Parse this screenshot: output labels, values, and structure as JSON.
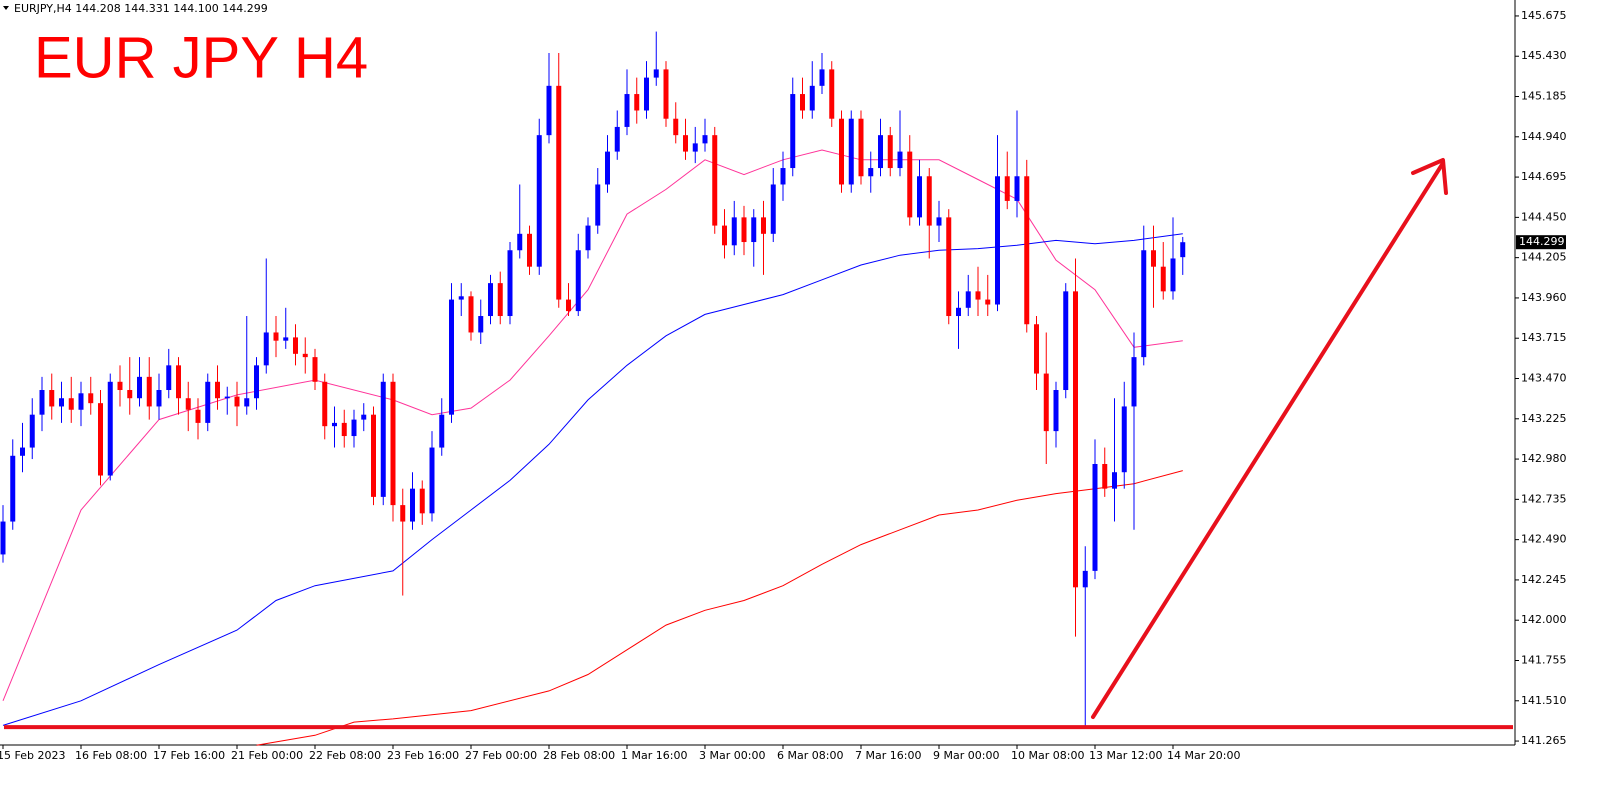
{
  "header": "EURJPY,H4  144.208 144.331 144.100 144.299",
  "chart_data": {
    "type": "candlestick",
    "title": "EUR JPY H4",
    "up_color": "#0000ff",
    "down_color": "#ff0000",
    "grid": false,
    "ylim": [
      141.241,
      145.772
    ],
    "yticks": [
      {
        "value": 145.675,
        "label": "145.675"
      },
      {
        "value": 145.43,
        "label": "145.430"
      },
      {
        "value": 145.185,
        "label": "145.185"
      },
      {
        "value": 144.94,
        "label": "144.940"
      },
      {
        "value": 144.695,
        "label": "144.695"
      },
      {
        "value": 144.45,
        "label": "144.450"
      },
      {
        "value": 144.205,
        "label": "144.205"
      },
      {
        "value": 143.96,
        "label": "143.960"
      },
      {
        "value": 143.715,
        "label": "143.715"
      },
      {
        "value": 143.47,
        "label": "143.470"
      },
      {
        "value": 143.225,
        "label": "143.225"
      },
      {
        "value": 142.98,
        "label": "142.980"
      },
      {
        "value": 142.735,
        "label": "142.735"
      },
      {
        "value": 142.49,
        "label": "142.490"
      },
      {
        "value": 142.245,
        "label": "142.245"
      },
      {
        "value": 142.0,
        "label": "142.000"
      },
      {
        "value": 141.755,
        "label": "141.755"
      },
      {
        "value": 141.51,
        "label": "141.510"
      },
      {
        "value": 141.265,
        "label": "141.265"
      }
    ],
    "xticks": [
      {
        "value": 0,
        "label": "15 Feb 2023"
      },
      {
        "value": 8,
        "label": "16 Feb 08:00"
      },
      {
        "value": 16,
        "label": "17 Feb 16:00"
      },
      {
        "value": 24,
        "label": "21 Feb 00:00"
      },
      {
        "value": 32,
        "label": "22 Feb 08:00"
      },
      {
        "value": 40,
        "label": "23 Feb 16:00"
      },
      {
        "value": 48,
        "label": "27 Feb 00:00"
      },
      {
        "value": 56,
        "label": "28 Feb 08:00"
      },
      {
        "value": 64,
        "label": "1 Mar 16:00"
      },
      {
        "value": 72,
        "label": "3 Mar 00:00"
      },
      {
        "value": 80,
        "label": "6 Mar 08:00"
      },
      {
        "value": 88,
        "label": "7 Mar 16:00"
      },
      {
        "value": 96,
        "label": "9 Mar 00:00"
      },
      {
        "value": 104,
        "label": "10 Mar 08:00"
      },
      {
        "value": 112,
        "label": "13 Mar 12:00"
      },
      {
        "value": 120,
        "label": "14 Mar 20:00"
      }
    ],
    "current_price": 144.299,
    "level": 141.35,
    "level_color": "#e8101c",
    "ohlc": [
      [
        142.4,
        142.7,
        142.35,
        142.6
      ],
      [
        142.6,
        143.1,
        142.55,
        143.0
      ],
      [
        143.0,
        143.2,
        142.9,
        143.05
      ],
      [
        143.05,
        143.35,
        142.98,
        143.25
      ],
      [
        143.25,
        143.48,
        143.15,
        143.4
      ],
      [
        143.4,
        143.5,
        143.22,
        143.3
      ],
      [
        143.3,
        143.45,
        143.2,
        143.35
      ],
      [
        143.35,
        143.48,
        143.2,
        143.28
      ],
      [
        143.28,
        143.45,
        143.18,
        143.38
      ],
      [
        143.38,
        143.48,
        143.25,
        143.32
      ],
      [
        143.32,
        143.4,
        142.82,
        142.88
      ],
      [
        142.88,
        143.5,
        142.85,
        143.45
      ],
      [
        143.45,
        143.55,
        143.3,
        143.4
      ],
      [
        143.4,
        143.6,
        143.25,
        143.35
      ],
      [
        143.35,
        143.6,
        143.3,
        143.48
      ],
      [
        143.48,
        143.6,
        143.22,
        143.3
      ],
      [
        143.3,
        143.5,
        143.22,
        143.4
      ],
      [
        143.4,
        143.65,
        143.35,
        143.55
      ],
      [
        143.55,
        143.6,
        143.25,
        143.35
      ],
      [
        143.35,
        143.45,
        143.15,
        143.28
      ],
      [
        143.28,
        143.35,
        143.1,
        143.2
      ],
      [
        143.2,
        143.5,
        143.15,
        143.45
      ],
      [
        143.45,
        143.55,
        143.28,
        143.35
      ],
      [
        143.35,
        143.42,
        143.25,
        143.36
      ],
      [
        143.36,
        143.45,
        143.18,
        143.3
      ],
      [
        143.3,
        143.85,
        143.25,
        143.35
      ],
      [
        143.35,
        143.6,
        143.28,
        143.55
      ],
      [
        143.55,
        144.2,
        143.5,
        143.75
      ],
      [
        143.75,
        143.85,
        143.6,
        143.7
      ],
      [
        143.7,
        143.9,
        143.65,
        143.72
      ],
      [
        143.72,
        143.8,
        143.55,
        143.62
      ],
      [
        143.62,
        143.72,
        143.5,
        143.6
      ],
      [
        143.6,
        143.65,
        143.4,
        143.45
      ],
      [
        143.45,
        143.5,
        143.1,
        143.18
      ],
      [
        143.18,
        143.3,
        143.05,
        143.2
      ],
      [
        143.2,
        143.28,
        143.05,
        143.12
      ],
      [
        143.12,
        143.28,
        143.05,
        143.22
      ],
      [
        143.22,
        143.32,
        143.15,
        143.25
      ],
      [
        143.25,
        143.3,
        142.7,
        142.75
      ],
      [
        142.75,
        143.5,
        142.7,
        143.45
      ],
      [
        143.45,
        143.5,
        142.6,
        142.7
      ],
      [
        142.7,
        142.8,
        142.15,
        142.6
      ],
      [
        142.6,
        142.9,
        142.55,
        142.8
      ],
      [
        142.8,
        142.85,
        142.58,
        142.65
      ],
      [
        142.65,
        143.15,
        142.6,
        143.05
      ],
      [
        143.05,
        143.35,
        143.0,
        143.25
      ],
      [
        143.25,
        144.05,
        143.2,
        143.95
      ],
      [
        143.95,
        144.05,
        143.85,
        143.97
      ],
      [
        143.97,
        144.0,
        143.7,
        143.75
      ],
      [
        143.75,
        143.95,
        143.68,
        143.85
      ],
      [
        143.85,
        144.1,
        143.8,
        144.05
      ],
      [
        144.05,
        144.12,
        143.8,
        143.85
      ],
      [
        143.85,
        144.3,
        143.8,
        144.25
      ],
      [
        144.25,
        144.65,
        144.2,
        144.35
      ],
      [
        144.35,
        144.4,
        144.1,
        144.15
      ],
      [
        144.15,
        145.05,
        144.1,
        144.95
      ],
      [
        144.95,
        145.45,
        144.9,
        145.25
      ],
      [
        145.25,
        145.45,
        143.9,
        143.95
      ],
      [
        143.95,
        144.05,
        143.85,
        143.88
      ],
      [
        143.88,
        144.35,
        143.85,
        144.25
      ],
      [
        144.25,
        144.45,
        144.2,
        144.4
      ],
      [
        144.4,
        144.75,
        144.35,
        144.65
      ],
      [
        144.65,
        144.95,
        144.6,
        144.85
      ],
      [
        144.85,
        145.1,
        144.8,
        145.0
      ],
      [
        145.0,
        145.35,
        144.95,
        145.2
      ],
      [
        145.2,
        145.3,
        145.02,
        145.1
      ],
      [
        145.1,
        145.4,
        145.05,
        145.3
      ],
      [
        145.3,
        145.58,
        145.25,
        145.35
      ],
      [
        145.35,
        145.4,
        145.0,
        145.05
      ],
      [
        145.05,
        145.15,
        144.9,
        144.95
      ],
      [
        144.95,
        145.05,
        144.8,
        144.85
      ],
      [
        144.85,
        145.0,
        144.78,
        144.9
      ],
      [
        144.9,
        145.05,
        144.85,
        144.95
      ],
      [
        144.95,
        145.0,
        144.35,
        144.4
      ],
      [
        144.4,
        144.5,
        144.2,
        144.28
      ],
      [
        144.28,
        144.55,
        144.22,
        144.45
      ],
      [
        144.45,
        144.52,
        144.22,
        144.3
      ],
      [
        144.3,
        144.5,
        144.15,
        144.45
      ],
      [
        144.45,
        144.55,
        144.1,
        144.35
      ],
      [
        144.35,
        144.75,
        144.3,
        144.65
      ],
      [
        144.65,
        144.85,
        144.55,
        144.75
      ],
      [
        144.75,
        145.3,
        144.7,
        145.2
      ],
      [
        145.2,
        145.3,
        145.05,
        145.1
      ],
      [
        145.1,
        145.4,
        145.05,
        145.25
      ],
      [
        145.25,
        145.45,
        145.2,
        145.35
      ],
      [
        145.35,
        145.4,
        145.0,
        145.05
      ],
      [
        145.05,
        145.1,
        144.6,
        144.65
      ],
      [
        144.65,
        145.1,
        144.6,
        145.05
      ],
      [
        145.05,
        145.1,
        144.65,
        144.7
      ],
      [
        144.7,
        144.85,
        144.6,
        144.75
      ],
      [
        144.75,
        145.05,
        144.7,
        144.95
      ],
      [
        144.95,
        145.0,
        144.7,
        144.75
      ],
      [
        144.75,
        145.1,
        144.7,
        144.85
      ],
      [
        144.85,
        144.95,
        144.4,
        144.45
      ],
      [
        144.45,
        144.8,
        144.4,
        144.7
      ],
      [
        144.7,
        144.75,
        144.2,
        144.4
      ],
      [
        144.4,
        144.55,
        144.3,
        144.45
      ],
      [
        144.45,
        144.5,
        143.8,
        143.85
      ],
      [
        143.85,
        144.0,
        143.65,
        143.9
      ],
      [
        143.9,
        144.1,
        143.85,
        144.0
      ],
      [
        144.0,
        144.15,
        143.85,
        143.95
      ],
      [
        143.95,
        144.1,
        143.85,
        143.92
      ],
      [
        143.92,
        144.95,
        143.88,
        144.7
      ],
      [
        144.7,
        144.85,
        144.5,
        144.55
      ],
      [
        144.55,
        145.1,
        144.45,
        144.7
      ],
      [
        144.7,
        144.8,
        143.75,
        143.8
      ],
      [
        143.8,
        143.85,
        143.4,
        143.5
      ],
      [
        143.5,
        143.75,
        142.95,
        143.15
      ],
      [
        143.15,
        143.45,
        143.05,
        143.4
      ],
      [
        143.4,
        144.05,
        143.35,
        144.0
      ],
      [
        144.0,
        144.2,
        141.9,
        142.2
      ],
      [
        142.2,
        142.45,
        141.35,
        142.3
      ],
      [
        142.3,
        143.1,
        142.25,
        142.95
      ],
      [
        142.95,
        143.05,
        142.75,
        142.8
      ],
      [
        142.8,
        143.35,
        142.6,
        142.9
      ],
      [
        142.9,
        143.45,
        142.8,
        143.3
      ],
      [
        143.3,
        143.75,
        142.55,
        143.6
      ],
      [
        143.6,
        144.4,
        143.55,
        144.25
      ],
      [
        144.25,
        144.4,
        143.9,
        144.15
      ],
      [
        144.15,
        144.3,
        143.95,
        144.0
      ],
      [
        144.0,
        144.45,
        143.95,
        144.2
      ],
      [
        144.208,
        144.331,
        144.1,
        144.299
      ]
    ],
    "moving_averages": [
      {
        "color": "#ff3399",
        "x": [
          0,
          8,
          16,
          24,
          32,
          40,
          44,
          48,
          52,
          56,
          60,
          64,
          68,
          72,
          76,
          80,
          84,
          88,
          92,
          96,
          100,
          104,
          108,
          112,
          116,
          121
        ],
        "values": [
          141.51,
          142.67,
          143.22,
          143.37,
          143.46,
          143.34,
          143.25,
          143.29,
          143.46,
          143.73,
          144.01,
          144.47,
          144.62,
          144.8,
          144.71,
          144.8,
          144.86,
          144.8,
          144.8,
          144.8,
          144.68,
          144.56,
          144.19,
          144.01,
          143.66,
          143.7
        ]
      },
      {
        "color": "#0000ff",
        "x": [
          0,
          8,
          16,
          24,
          28,
          32,
          40,
          44,
          48,
          52,
          56,
          60,
          64,
          68,
          72,
          76,
          80,
          84,
          88,
          92,
          96,
          100,
          104,
          108,
          112,
          116,
          121
        ],
        "values": [
          141.36,
          141.51,
          141.73,
          141.94,
          142.12,
          142.21,
          142.3,
          142.49,
          142.67,
          142.85,
          143.07,
          143.34,
          143.55,
          143.73,
          143.86,
          143.92,
          143.98,
          144.07,
          144.16,
          144.22,
          144.25,
          144.26,
          144.28,
          144.31,
          144.29,
          144.31,
          144.35
        ]
      },
      {
        "color": "#ff0000",
        "x": [
          26,
          32,
          36,
          40,
          48,
          56,
          60,
          64,
          68,
          72,
          76,
          80,
          84,
          88,
          92,
          96,
          100,
          104,
          108,
          112,
          116,
          121
        ],
        "values": [
          141.24,
          141.3,
          141.38,
          141.4,
          141.45,
          141.57,
          141.67,
          141.82,
          141.97,
          142.06,
          142.12,
          142.21,
          142.34,
          142.46,
          142.55,
          142.64,
          142.67,
          142.73,
          142.77,
          142.8,
          142.83,
          142.91
        ]
      }
    ]
  }
}
